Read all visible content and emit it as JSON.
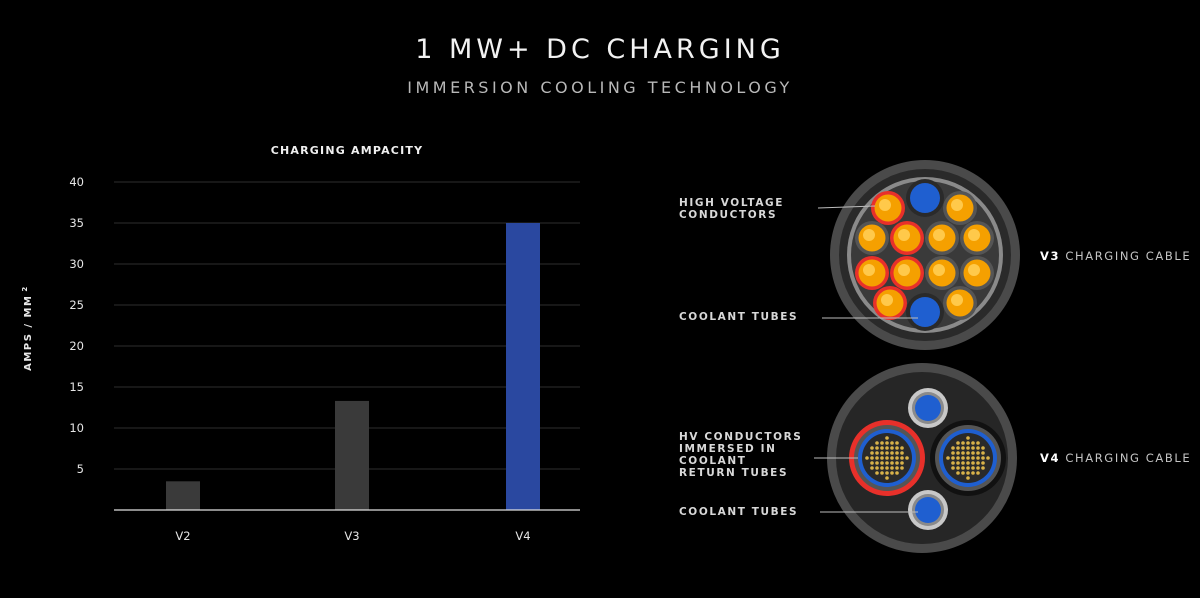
{
  "header": {
    "title": "1 MW+ DC CHARGING",
    "subtitle": "IMMERSION COOLING TECHNOLOGY"
  },
  "chart_data": {
    "type": "bar",
    "title": "CHARGING AMPACITY",
    "ylabel": "AMPS / MM",
    "ylabel_superscript": "2",
    "xlabel": "",
    "categories": [
      "V2",
      "V3",
      "V4"
    ],
    "values": [
      3.5,
      13.3,
      35
    ],
    "ylim": [
      0,
      40
    ],
    "yticks": [
      5,
      10,
      15,
      20,
      25,
      30,
      35,
      40
    ],
    "grid": true,
    "bar_colors": [
      "#3a3a3a",
      "#3a3a3a",
      "#2a48a0"
    ]
  },
  "cables": {
    "v3": {
      "name_bold": "V3",
      "name_rest": "CHARGING CABLE",
      "label_conductors_line1": "HIGH VOLTAGE",
      "label_conductors_line2": "CONDUCTORS",
      "label_coolant": "COOLANT TUBES"
    },
    "v4": {
      "name_bold": "V4",
      "name_rest": "CHARGING CABLE",
      "label_hv_line1": "HV CONDUCTORS",
      "label_hv_line2": "IMMERSED IN",
      "label_hv_line3": "COOLANT",
      "label_hv_line4": "RETURN TUBES",
      "label_coolant": "COOLANT TUBES"
    }
  },
  "colors": {
    "background": "#000000",
    "accent_blue": "#2a48a0",
    "conductor_orange": "#f5a000",
    "conductor_red": "#e8302a",
    "coolant_blue": "#1f5fd0"
  }
}
